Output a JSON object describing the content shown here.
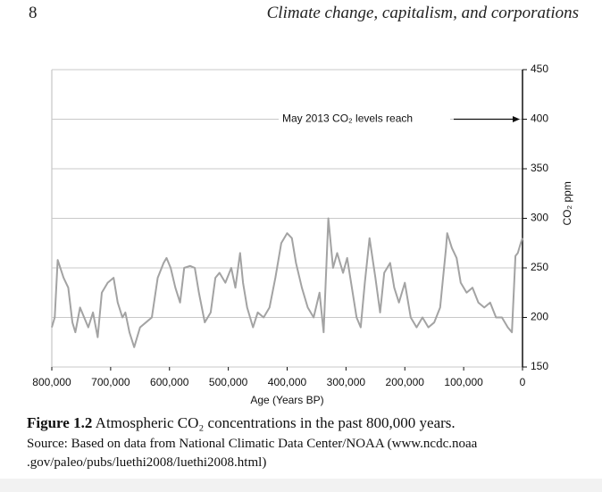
{
  "header": {
    "page_number": "8",
    "running_title": "Climate change, capitalism, and corporations"
  },
  "chart_data": {
    "type": "line",
    "annotation": "May 2013 CO₂ levels reach",
    "annotation_target": 400,
    "xlabel": "Age (Years BP)",
    "ylabel": "CO₂ ppm",
    "color": "#a3a3a3",
    "grid": true,
    "xlim": [
      800000,
      0
    ],
    "ylim": [
      150,
      450
    ],
    "xticks": [
      {
        "value": 800000,
        "label": "800,000"
      },
      {
        "value": 700000,
        "label": "700,000"
      },
      {
        "value": 600000,
        "label": "600,000"
      },
      {
        "value": 500000,
        "label": "500,000"
      },
      {
        "value": 400000,
        "label": "400,000"
      },
      {
        "value": 300000,
        "label": "300,000"
      },
      {
        "value": 200000,
        "label": "200,000"
      },
      {
        "value": 100000,
        "label": "100,000"
      },
      0
    ],
    "yticks": [
      150,
      200,
      250,
      300,
      350,
      400,
      450
    ],
    "x": [
      800000,
      795000,
      790000,
      780000,
      772000,
      765000,
      760000,
      752000,
      745000,
      738000,
      730000,
      722000,
      715000,
      705000,
      695000,
      688000,
      680000,
      675000,
      668000,
      660000,
      650000,
      640000,
      630000,
      620000,
      610000,
      605000,
      598000,
      590000,
      582000,
      575000,
      565000,
      557000,
      550000,
      540000,
      530000,
      522000,
      515000,
      505000,
      495000,
      488000,
      480000,
      475000,
      468000,
      458000,
      450000,
      440000,
      430000,
      420000,
      410000,
      400000,
      392000,
      385000,
      375000,
      365000,
      355000,
      345000,
      338000,
      330000,
      322000,
      315000,
      305000,
      298000,
      290000,
      282000,
      275000,
      268000,
      260000,
      250000,
      242000,
      235000,
      225000,
      218000,
      210000,
      200000,
      190000,
      180000,
      170000,
      160000,
      150000,
      140000,
      130000,
      128000,
      120000,
      112000,
      105000,
      95000,
      85000,
      75000,
      65000,
      55000,
      45000,
      35000,
      25000,
      18000,
      12000,
      8000,
      3000,
      0
    ],
    "values": [
      190,
      200,
      258,
      240,
      230,
      195,
      185,
      210,
      200,
      190,
      205,
      180,
      225,
      235,
      240,
      215,
      200,
      205,
      185,
      170,
      190,
      195,
      200,
      240,
      255,
      260,
      250,
      230,
      215,
      250,
      252,
      250,
      225,
      195,
      205,
      240,
      245,
      235,
      250,
      230,
      265,
      235,
      210,
      190,
      205,
      200,
      210,
      240,
      275,
      285,
      280,
      255,
      230,
      210,
      200,
      225,
      185,
      300,
      250,
      265,
      245,
      260,
      230,
      200,
      190,
      235,
      280,
      240,
      205,
      245,
      255,
      230,
      215,
      235,
      200,
      190,
      200,
      190,
      195,
      210,
      270,
      285,
      270,
      260,
      235,
      225,
      230,
      215,
      210,
      215,
      200,
      200,
      190,
      185,
      262,
      265,
      275,
      280
    ]
  },
  "caption": {
    "label": "Figure 1.2",
    "text": "Atmospheric CO₂ concentrations in the past 800,000 years.",
    "source": "Source: Based on data from National Climatic Data Center/NOAA (www.ncdc.noaa .gov/paleo/pubs/luethi2008/luethi2008.html)"
  }
}
